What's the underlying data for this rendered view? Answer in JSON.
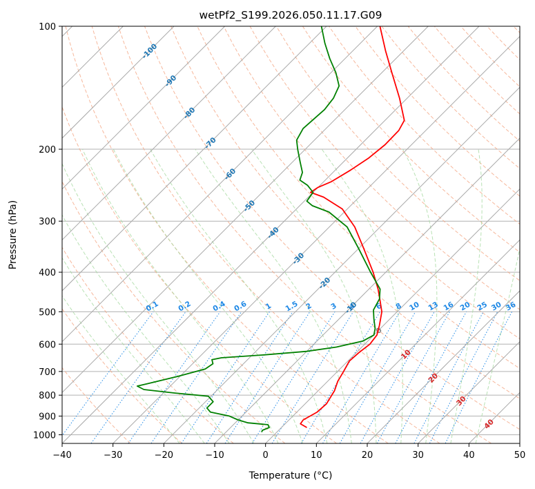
{
  "chart_data": {
    "type": "line",
    "title": "wetPf2_S199.2026.050.11.17.G09",
    "xlabel": "Temperature (°C)",
    "ylabel": "Pressure (hPa)",
    "xlim": [
      -40,
      50
    ],
    "ylim": [
      1050,
      100
    ],
    "y_scale": "log",
    "skew": "45deg",
    "grid": true,
    "x_ticks": [
      "−40",
      "−30",
      "−20",
      "−10",
      "0",
      "10",
      "20",
      "30",
      "40",
      "50"
    ],
    "y_ticks": [
      "100",
      "200",
      "300",
      "400",
      "500",
      "600",
      "700",
      "800",
      "900",
      "1000"
    ],
    "colors": {
      "temperature": "#ff0000",
      "dewpoint": "#008000",
      "dry_adiabat": "#f4a582",
      "moist_adiabat": "#a6d9a0",
      "mixing_ratio": "#1e88e5",
      "isotherm": "#808080",
      "isotherm_label": "#1f77b4",
      "warm_label": "#d62728"
    },
    "isotherm_labels": [
      {
        "t": -100,
        "p": 115,
        "text": "-100"
      },
      {
        "t": -90,
        "p": 136,
        "text": "-90"
      },
      {
        "t": -80,
        "p": 163,
        "text": "-80"
      },
      {
        "t": -70,
        "p": 193,
        "text": "-70"
      },
      {
        "t": -60,
        "p": 230,
        "text": "-60"
      },
      {
        "t": -50,
        "p": 275,
        "text": "-50"
      },
      {
        "t": -40,
        "p": 320,
        "text": "-40"
      },
      {
        "t": -30,
        "p": 370,
        "text": "-30"
      },
      {
        "t": -20,
        "p": 425,
        "text": "-20"
      },
      {
        "t": -10,
        "p": 488,
        "text": "-10"
      },
      {
        "t": 0,
        "p": 555,
        "text": "0"
      },
      {
        "t": 10,
        "p": 635,
        "text": "10"
      },
      {
        "t": 20,
        "p": 725,
        "text": "20"
      },
      {
        "t": 30,
        "p": 825,
        "text": "30"
      },
      {
        "t": 40,
        "p": 940,
        "text": "40"
      }
    ],
    "mixing_ratio_labels": [
      "0.1",
      "0.2",
      "0.4",
      "0.6",
      "1",
      "1.5",
      "2",
      "3",
      "4",
      "6",
      "8",
      "10",
      "13",
      "16",
      "20",
      "25",
      "30",
      "36"
    ],
    "mixing_ratio_values": [
      0.1,
      0.2,
      0.4,
      0.6,
      1,
      1.5,
      2,
      3,
      4,
      6,
      8,
      10,
      13,
      16,
      20,
      25,
      30,
      36
    ],
    "series": [
      {
        "key": "temperature",
        "points": [
          {
            "p": 960,
            "t": 5.0
          },
          {
            "p": 940,
            "t": 3.0
          },
          {
            "p": 920,
            "t": 2.8
          },
          {
            "p": 880,
            "t": 4.0
          },
          {
            "p": 840,
            "t": 4.2
          },
          {
            "p": 780,
            "t": 3.2
          },
          {
            "p": 740,
            "t": 2.0
          },
          {
            "p": 700,
            "t": 1.2
          },
          {
            "p": 660,
            "t": 0.3
          },
          {
            "p": 630,
            "t": 0.5
          },
          {
            "p": 600,
            "t": 1.0
          },
          {
            "p": 570,
            "t": 0.6
          },
          {
            "p": 540,
            "t": -0.8
          },
          {
            "p": 500,
            "t": -3.0
          },
          {
            "p": 470,
            "t": -5.5
          },
          {
            "p": 440,
            "t": -8.2
          },
          {
            "p": 400,
            "t": -12.5
          },
          {
            "p": 350,
            "t": -19.0
          },
          {
            "p": 310,
            "t": -25.0
          },
          {
            "p": 280,
            "t": -31.0
          },
          {
            "p": 262,
            "t": -37.0
          },
          {
            "p": 255,
            "t": -40.5
          },
          {
            "p": 248,
            "t": -40.0
          },
          {
            "p": 240,
            "t": -38.5
          },
          {
            "p": 225,
            "t": -37.0
          },
          {
            "p": 210,
            "t": -35.8
          },
          {
            "p": 195,
            "t": -35.2
          },
          {
            "p": 180,
            "t": -35.3
          },
          {
            "p": 170,
            "t": -36.2
          },
          {
            "p": 150,
            "t": -41.5
          },
          {
            "p": 130,
            "t": -48.0
          },
          {
            "p": 115,
            "t": -53.5
          },
          {
            "p": 100,
            "t": -59.5
          }
        ]
      },
      {
        "key": "dewpoint",
        "points": [
          {
            "p": 985,
            "t": -3.0
          },
          {
            "p": 975,
            "t": -3.2
          },
          {
            "p": 960,
            "t": -2.4
          },
          {
            "p": 945,
            "t": -3.2
          },
          {
            "p": 935,
            "t": -7.5
          },
          {
            "p": 920,
            "t": -10.0
          },
          {
            "p": 900,
            "t": -12.5
          },
          {
            "p": 880,
            "t": -17.0
          },
          {
            "p": 860,
            "t": -18.5
          },
          {
            "p": 830,
            "t": -18.5
          },
          {
            "p": 805,
            "t": -20.5
          },
          {
            "p": 790,
            "t": -28.0
          },
          {
            "p": 775,
            "t": -34.5
          },
          {
            "p": 760,
            "t": -36.5
          },
          {
            "p": 750,
            "t": -35.0
          },
          {
            "p": 720,
            "t": -30.5
          },
          {
            "p": 690,
            "t": -26.5
          },
          {
            "p": 670,
            "t": -26.0
          },
          {
            "p": 655,
            "t": -27.0
          },
          {
            "p": 648,
            "t": -25.5
          },
          {
            "p": 638,
            "t": -18.0
          },
          {
            "p": 625,
            "t": -10.0
          },
          {
            "p": 610,
            "t": -5.0
          },
          {
            "p": 590,
            "t": -1.0
          },
          {
            "p": 570,
            "t": 0.0
          },
          {
            "p": 550,
            "t": -1.0
          },
          {
            "p": 520,
            "t": -3.2
          },
          {
            "p": 495,
            "t": -5.0
          },
          {
            "p": 465,
            "t": -6.0
          },
          {
            "p": 440,
            "t": -7.8
          },
          {
            "p": 400,
            "t": -13.0
          },
          {
            "p": 350,
            "t": -20.0
          },
          {
            "p": 310,
            "t": -26.5
          },
          {
            "p": 285,
            "t": -33.0
          },
          {
            "p": 275,
            "t": -37.5
          },
          {
            "p": 268,
            "t": -39.5
          },
          {
            "p": 255,
            "t": -40.0
          },
          {
            "p": 245,
            "t": -42.5
          },
          {
            "p": 238,
            "t": -45.0
          },
          {
            "p": 228,
            "t": -46.0
          },
          {
            "p": 215,
            "t": -48.5
          },
          {
            "p": 200,
            "t": -51.5
          },
          {
            "p": 190,
            "t": -53.5
          },
          {
            "p": 178,
            "t": -54.5
          },
          {
            "p": 170,
            "t": -54.3
          },
          {
            "p": 160,
            "t": -54.0
          },
          {
            "p": 150,
            "t": -54.5
          },
          {
            "p": 140,
            "t": -55.8
          },
          {
            "p": 130,
            "t": -59.0
          },
          {
            "p": 120,
            "t": -63.0
          },
          {
            "p": 110,
            "t": -67.0
          },
          {
            "p": 100,
            "t": -71.0
          }
        ]
      }
    ]
  }
}
